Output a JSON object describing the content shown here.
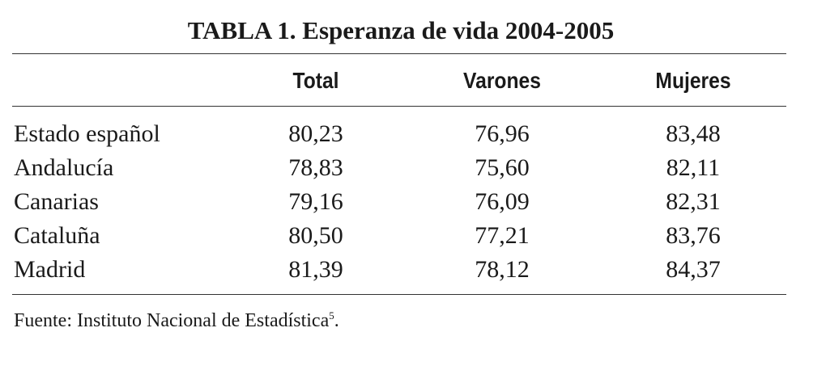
{
  "title": "TABLA 1. Esperanza de vida 2004-2005",
  "table": {
    "columns": [
      "Total",
      "Varones",
      "Mujeres"
    ],
    "rows": [
      [
        "Estado español",
        "80,23",
        "76,96",
        "83,48"
      ],
      [
        "Andalucía",
        "78,83",
        "75,60",
        "82,11"
      ],
      [
        "Canarias",
        "79,16",
        "76,09",
        "82,31"
      ],
      [
        "Cataluña",
        "80,50",
        "77,21",
        "83,76"
      ],
      [
        "Madrid",
        "81,39",
        "78,12",
        "84,37"
      ]
    ]
  },
  "source": {
    "text": "Fuente: Instituto Nacional de Estadística",
    "footnote": "5",
    "end": "."
  }
}
